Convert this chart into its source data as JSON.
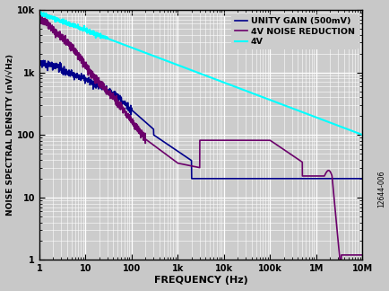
{
  "xlabel": "FREQUENCY (Hz)",
  "ylabel": "NOISE SPECTRAL DENSITY (nV/√Hz)",
  "xlim": [
    1,
    10000000.0
  ],
  "ylim": [
    1,
    10000
  ],
  "legend": [
    "4V",
    "UNITY GAIN (500mV)",
    "4V NOISE REDUCTION"
  ],
  "line_colors": [
    "#00FFFF",
    "#00008B",
    "#6B006B"
  ],
  "fig_bg_color": "#c8c8c8",
  "plot_bg_color": "#cccccc",
  "annotation": "12644-006"
}
